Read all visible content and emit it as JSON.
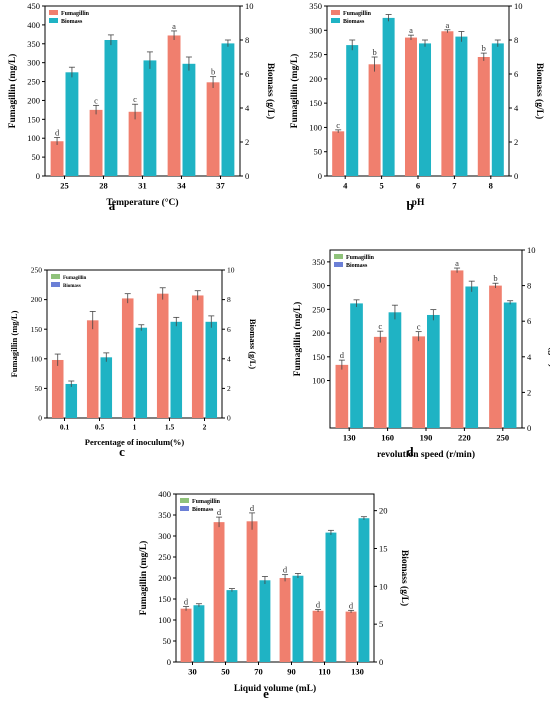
{
  "colors": {
    "fumagillin": "#f07f6e",
    "biomass": "#1fb3c4",
    "fumagillin_alt_legend": "#8fc27a",
    "biomass_alt_legend": "#6b7fd6"
  },
  "panels": [
    {
      "label": "a",
      "chart_data": {
        "type": "bar",
        "categories": [
          "25",
          "28",
          "31",
          "34",
          "37"
        ],
        "series": [
          {
            "name": "Fumagillin",
            "values": [
              92,
              175,
              170,
              372,
              248
            ],
            "errors": [
              10,
              12,
              20,
              12,
              15
            ],
            "letters": [
              "d",
              "c",
              "c",
              "a",
              "b"
            ],
            "axis": "left"
          },
          {
            "name": "Biomass",
            "values": [
              6.1,
              8.0,
              6.8,
              6.6,
              7.8
            ],
            "errors": [
              0.3,
              0.3,
              0.5,
              0.4,
              0.2
            ],
            "axis": "right"
          }
        ],
        "xlabel": "Temperature (°C)",
        "ylabel": "Fumagillin (mg/L)",
        "y2label": "Biomass (g/L)",
        "ylim": [
          0,
          450
        ],
        "yticks": [
          0,
          50,
          100,
          150,
          200,
          250,
          300,
          350,
          400,
          450
        ],
        "y2lim": [
          0,
          10
        ],
        "y2ticks": [
          0,
          2,
          4,
          6,
          8,
          10
        ],
        "legend": "top-left"
      }
    },
    {
      "label": "b",
      "chart_data": {
        "type": "bar",
        "categories": [
          "4",
          "5",
          "6",
          "7",
          "8"
        ],
        "series": [
          {
            "name": "Fumagillin",
            "values": [
              92,
              230,
              285,
              298,
              245
            ],
            "errors": [
              3,
              15,
              5,
              3,
              8
            ],
            "letters": [
              "c",
              "b",
              "a",
              "a",
              "b"
            ],
            "axis": "left"
          },
          {
            "name": "Biomass",
            "values": [
              7.7,
              9.3,
              7.8,
              8.2,
              7.8
            ],
            "errors": [
              0.3,
              0.2,
              0.2,
              0.3,
              0.2
            ],
            "axis": "right"
          }
        ],
        "xlabel": "pH",
        "ylabel": "Fumagillin (mg/L)",
        "y2label": "Biomass (g/L)",
        "ylim": [
          0,
          350
        ],
        "yticks": [
          0,
          50,
          100,
          150,
          200,
          250,
          300,
          350
        ],
        "y2lim": [
          0,
          10
        ],
        "y2ticks": [
          0,
          2,
          4,
          6,
          8,
          10
        ],
        "legend": "top-left"
      }
    },
    {
      "label": "c",
      "chart_data": {
        "type": "bar",
        "categories": [
          "0.1",
          "0.5",
          "1",
          "1.5",
          "2"
        ],
        "series": [
          {
            "name": "Fumagillin",
            "values": [
              98,
              165,
              202,
              210,
              207
            ],
            "errors": [
              10,
              15,
              8,
              10,
              8
            ],
            "letters": [
              "",
              "",
              "",
              "",
              ""
            ],
            "axis": "left"
          },
          {
            "name": "Biomass",
            "values": [
              2.3,
              4.1,
              6.1,
              6.5,
              6.5
            ],
            "errors": [
              0.2,
              0.3,
              0.2,
              0.3,
              0.4
            ],
            "axis": "right"
          }
        ],
        "xlabel": "Percentage of inoculum(%)",
        "ylabel": "Fumagillin (mg/L)",
        "y2label": "Biomass (g/L)",
        "ylim": [
          0,
          250
        ],
        "yticks": [
          0,
          50,
          100,
          150,
          200,
          250
        ],
        "y2lim": [
          0,
          10
        ],
        "y2ticks": [
          0,
          2,
          4,
          6,
          8,
          10
        ],
        "legend": "top-left"
      }
    },
    {
      "label": "d",
      "chart_data": {
        "type": "bar",
        "categories": [
          "130",
          "160",
          "190",
          "220",
          "250"
        ],
        "series": [
          {
            "name": "Fumagillin",
            "values": [
              133,
              192,
              193,
              332,
              300
            ],
            "errors": [
              10,
              12,
              10,
              5,
              5
            ],
            "letters": [
              "d",
              "c",
              "c",
              "a",
              "b"
            ],
            "axis": "left"
          },
          {
            "name": "Biomass",
            "values": [
              7.0,
              6.5,
              6.35,
              7.95,
              7.05
            ],
            "errors": [
              0.2,
              0.4,
              0.3,
              0.3,
              0.1
            ],
            "axis": "right"
          }
        ],
        "xlabel": "revolution speed (r/min)",
        "ylabel": "Fumagillin (mg/L)",
        "y2label": "Biomass (g/L)",
        "ylim": [
          0,
          375
        ],
        "yticks": [
          100,
          150,
          200,
          250,
          300,
          350
        ],
        "y2lim": [
          0,
          10
        ],
        "y2ticks": [
          0,
          2,
          4,
          6,
          8,
          10
        ],
        "legend": "top-left"
      }
    },
    {
      "label": "e",
      "chart_data": {
        "type": "bar",
        "categories": [
          "30",
          "50",
          "70",
          "90",
          "110",
          "130"
        ],
        "series": [
          {
            "name": "Fumagillin",
            "values": [
              127,
              333,
              335,
              200,
              122,
              120
            ],
            "errors": [
              5,
              12,
              20,
              8,
              3,
              3
            ],
            "letters": [
              "d",
              "d",
              "d",
              "d",
              "d",
              "d"
            ],
            "axis": "left"
          },
          {
            "name": "Biomass",
            "values": [
              7.5,
              9.5,
              10.8,
              11.4,
              17.1,
              19.0
            ],
            "errors": [
              0.2,
              0.2,
              0.5,
              0.3,
              0.3,
              0.2
            ],
            "axis": "right"
          }
        ],
        "xlabel": "Liquid volume (mL)",
        "ylabel": "Fumagillin (mg/L)",
        "y2label": "Biomass (g/L)",
        "ylim": [
          0,
          400
        ],
        "yticks": [
          0,
          50,
          100,
          150,
          200,
          250,
          300,
          350,
          400
        ],
        "y2lim": [
          0,
          22.2
        ],
        "y2ticks": [
          0,
          5,
          10,
          15,
          20
        ],
        "legend": "top-left"
      }
    }
  ]
}
